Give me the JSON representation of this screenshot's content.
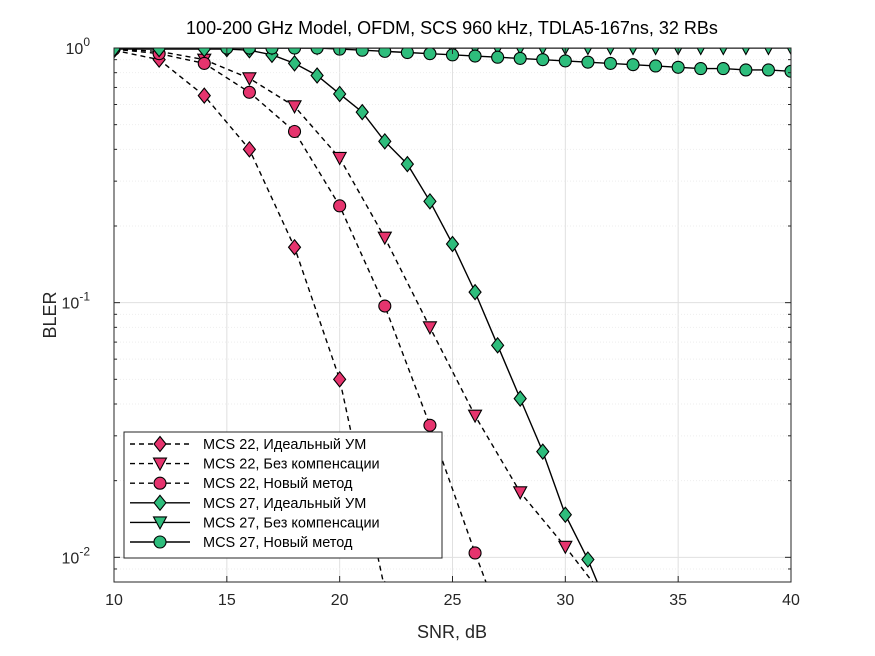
{
  "chart_data": {
    "type": "line",
    "title": "100-200 GHz Model, OFDM, SCS 960 kHz, TDLA5-167ns, 32 RBs",
    "xlabel": "SNR, dB",
    "ylabel": "BLER",
    "xlim": [
      10,
      40
    ],
    "ylim": [
      0.008,
      1
    ],
    "yscale": "log",
    "grid": true,
    "x_ticks": [
      "10",
      "15",
      "20",
      "25",
      "30",
      "35",
      "40"
    ],
    "y_ticks": [
      {
        "base": "10",
        "exp": "-2"
      },
      {
        "base": "10",
        "exp": "-1"
      },
      {
        "base": "10",
        "exp": "0"
      }
    ],
    "legend_position": "bottom-left",
    "colors": {
      "pink": "#e6346e",
      "green": "#2ebd7c",
      "grid": "#e0e0e0",
      "axis": "#262626"
    },
    "series": [
      {
        "name": "MCS 22, Идеальный УМ",
        "line": "dashed",
        "marker": "diamond",
        "color": "#e6346e",
        "x": [
          10,
          12,
          14,
          16,
          18,
          20,
          22
        ],
        "y": [
          0.98,
          0.9,
          0.65,
          0.4,
          0.165,
          0.05,
          0.0075
        ]
      },
      {
        "name": "MCS 22, Без компенсации",
        "line": "dashed",
        "marker": "triangle-down",
        "color": "#e6346e",
        "x": [
          10,
          12,
          14,
          16,
          18,
          20,
          22,
          24,
          26,
          28,
          30,
          32
        ],
        "y": [
          0.99,
          0.97,
          0.9,
          0.76,
          0.59,
          0.37,
          0.18,
          0.08,
          0.036,
          0.018,
          0.011,
          0.0065
        ]
      },
      {
        "name": "MCS 22, Новый метод",
        "line": "dashed",
        "marker": "circle",
        "color": "#e6346e",
        "x": [
          10,
          12,
          14,
          16,
          18,
          20,
          22,
          24,
          26,
          28
        ],
        "y": [
          0.99,
          0.95,
          0.87,
          0.67,
          0.47,
          0.24,
          0.097,
          0.033,
          0.0104,
          0.0035
        ]
      },
      {
        "name": "MCS 27, Идеальный УМ",
        "line": "solid",
        "marker": "diamond",
        "color": "#2ebd7c",
        "x": [
          10,
          12,
          14,
          15,
          16,
          17,
          18,
          19,
          20,
          21,
          22,
          23,
          24,
          25,
          26,
          27,
          28,
          29,
          30,
          31,
          32
        ],
        "y": [
          0.99,
          0.99,
          0.99,
          0.99,
          0.98,
          0.94,
          0.87,
          0.78,
          0.66,
          0.56,
          0.43,
          0.35,
          0.25,
          0.17,
          0.11,
          0.068,
          0.042,
          0.026,
          0.0147,
          0.0098,
          0.006
        ]
      },
      {
        "name": "MCS 27, Без компенсации",
        "line": "solid",
        "marker": "triangle-down",
        "color": "#2ebd7c",
        "x": [
          15,
          16,
          17,
          18,
          19,
          20,
          21,
          22,
          23,
          24,
          25,
          26,
          27,
          28,
          29,
          30,
          31,
          32,
          33,
          34,
          35,
          36,
          37,
          38,
          39,
          40
        ],
        "y": [
          1,
          1,
          1,
          1,
          1,
          1,
          1,
          1,
          1,
          1,
          1,
          1,
          1,
          1,
          1,
          1,
          1,
          1,
          1,
          1,
          1,
          1,
          1,
          1,
          1,
          1
        ]
      },
      {
        "name": "MCS 27, Новый метод",
        "line": "solid",
        "marker": "circle",
        "color": "#2ebd7c",
        "x": [
          15,
          16,
          17,
          18,
          19,
          20,
          21,
          22,
          23,
          24,
          25,
          26,
          27,
          28,
          29,
          30,
          31,
          32,
          33,
          34,
          35,
          36,
          37,
          38,
          39,
          40
        ],
        "y": [
          1,
          1,
          1,
          1,
          1,
          0.99,
          0.98,
          0.97,
          0.96,
          0.95,
          0.94,
          0.93,
          0.92,
          0.91,
          0.9,
          0.89,
          0.88,
          0.87,
          0.86,
          0.85,
          0.84,
          0.83,
          0.83,
          0.82,
          0.82,
          0.81
        ]
      }
    ]
  }
}
